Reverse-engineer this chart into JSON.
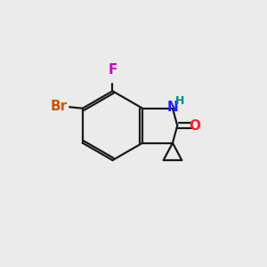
{
  "bg_color": "#ebebeb",
  "bond_color": "#1a1a1a",
  "atom_colors": {
    "N": "#2020ff",
    "O": "#ff2020",
    "Br": "#cc5500",
    "F": "#cc00cc",
    "H": "#008888"
  },
  "font_size_atom": 11,
  "font_size_H": 9,
  "lw": 1.6
}
